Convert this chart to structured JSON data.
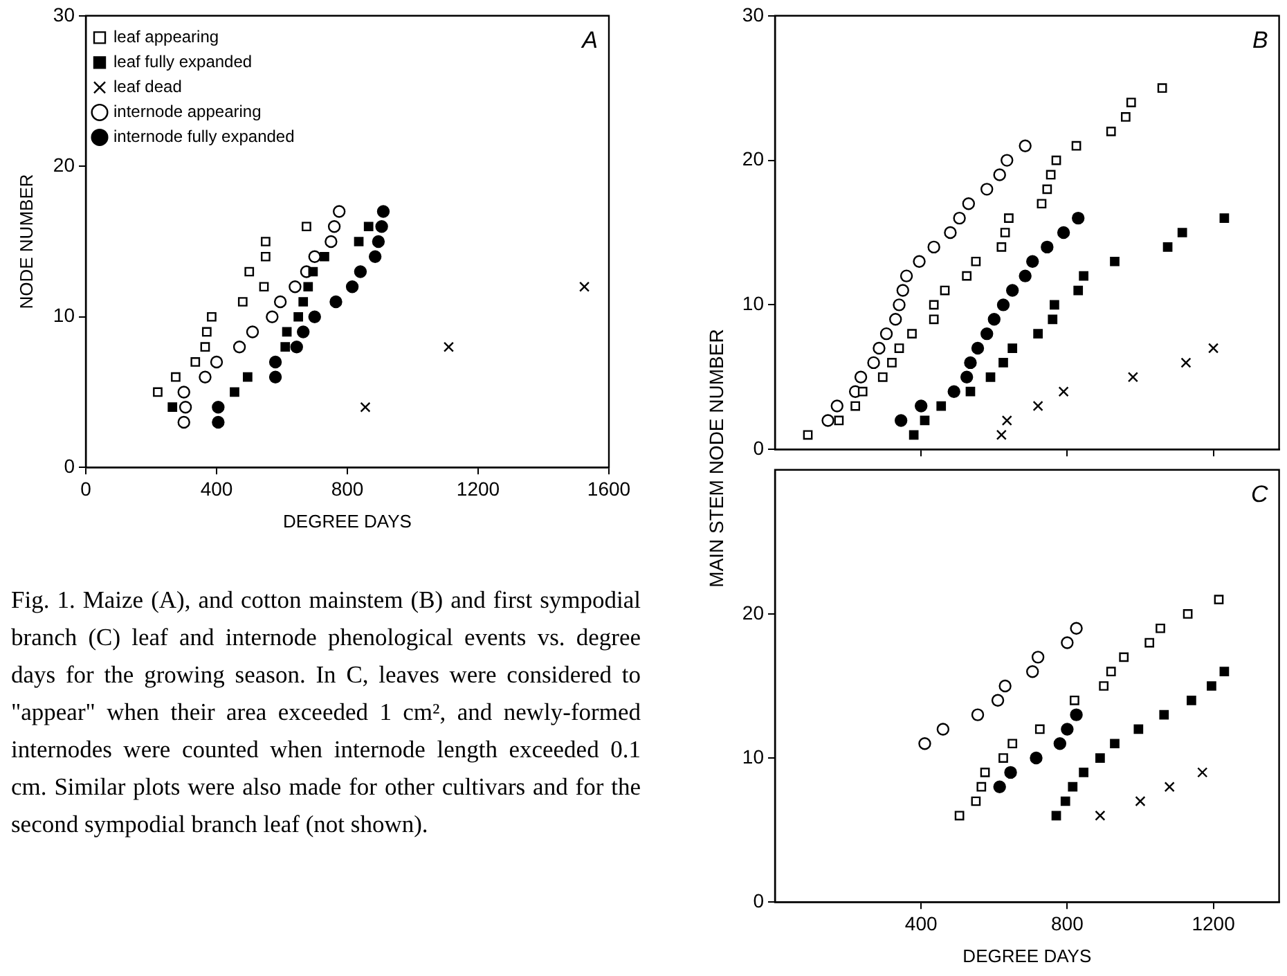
{
  "chart_data": [
    {
      "type": "scatter",
      "title": "A",
      "xlabel": "DEGREE DAYS",
      "ylabel": "NODE NUMBER",
      "xlim": [
        0,
        1600
      ],
      "xticks": [
        0,
        400,
        800,
        1200,
        1600
      ],
      "ylim": [
        0,
        30
      ],
      "yticks": [
        0,
        10,
        20,
        30
      ],
      "grid": false,
      "legend": "top left",
      "annotations": [
        "Fig. 1. Maize (A), and cotton mainstem (B) and first sympodial branch (C) leaf and internode phenological events vs. degree days for the growing season. In C, leaves were considered to \"appear\" when their area exceeded 1 cm², and newly-formed internodes were counted when internode length exceeded 0.1 cm. Similar plots were also made for other cultivars and for the second sympodial branch leaf (not shown)."
      ],
      "series": [
        {
          "name": "leaf appearing",
          "color": "#000000",
          "marker": "square",
          "x": [
            220,
            275,
            335,
            365,
            370,
            385,
            480,
            545,
            500,
            550,
            550,
            675
          ],
          "values": [
            5,
            6,
            7,
            8,
            9,
            10,
            11,
            12,
            13,
            14,
            15,
            16
          ]
        },
        {
          "name": "leaf fully expanded",
          "color": "#000000",
          "marker": "square",
          "x": [
            265,
            455,
            495,
            610,
            615,
            650,
            665,
            680,
            695,
            730,
            835,
            865
          ],
          "values": [
            4,
            5,
            6,
            8,
            9,
            10,
            11,
            12,
            13,
            14,
            15,
            16
          ]
        },
        {
          "name": "leaf dead",
          "color": "#000000",
          "marker": "cross",
          "x": [
            855,
            1110,
            1525
          ],
          "values": [
            4,
            8,
            12
          ]
        },
        {
          "name": "internode appearing",
          "color": "#000000",
          "marker": "circle",
          "x": [
            300,
            305,
            300,
            365,
            400,
            470,
            510,
            570,
            595,
            640,
            675,
            700,
            750,
            760,
            775
          ],
          "values": [
            5,
            4,
            3,
            6,
            7,
            8,
            9,
            10,
            11,
            12,
            13,
            14,
            15,
            16,
            17
          ]
        },
        {
          "name": "internode fully expanded",
          "color": "#000000",
          "marker": "circle",
          "x": [
            405,
            405,
            580,
            580,
            645,
            665,
            700,
            765,
            815,
            840,
            885,
            895,
            905,
            910
          ],
          "values": [
            4,
            3,
            6,
            7,
            8,
            9,
            10,
            11,
            12,
            13,
            14,
            15,
            16,
            17
          ]
        }
      ]
    },
    {
      "type": "scatter",
      "title": "B",
      "ylabel": "MAIN STEM NODE NUMBER",
      "xlim": [
        0,
        1380
      ],
      "xticks": [
        400,
        800,
        1200
      ],
      "ylim": [
        0,
        30
      ],
      "yticks": [
        0,
        10,
        20,
        30
      ],
      "grid": false,
      "tick_labels": "y",
      "series": [
        {
          "color": "#000000",
          "marker": "square",
          "x": [
            90,
            175,
            220,
            240,
            295,
            320,
            340,
            375,
            435,
            435,
            465,
            525,
            550,
            620,
            630,
            640,
            730,
            745,
            755,
            770,
            825,
            920,
            960,
            975,
            1060
          ],
          "values": [
            1,
            2,
            3,
            4,
            5,
            6,
            7,
            8,
            9,
            10,
            11,
            12,
            13,
            14,
            15,
            16,
            17,
            18,
            19,
            20,
            21,
            22,
            23,
            24,
            25
          ]
        },
        {
          "color": "#000000",
          "marker": "square",
          "x": [
            380,
            410,
            455,
            535,
            590,
            625,
            650,
            720,
            760,
            765,
            830,
            845,
            930,
            1075,
            1115,
            1230
          ],
          "values": [
            1,
            2,
            3,
            4,
            5,
            6,
            7,
            8,
            9,
            10,
            11,
            12,
            13,
            14,
            15,
            16
          ]
        },
        {
          "color": "#000000",
          "marker": "cross",
          "x": [
            620,
            635,
            720,
            790,
            980,
            1125,
            1200
          ],
          "values": [
            1,
            2,
            3,
            4,
            5,
            6,
            7
          ]
        },
        {
          "color": "#000000",
          "marker": "circle",
          "x": [
            145,
            170,
            220,
            235,
            270,
            285,
            305,
            330,
            340,
            350,
            360,
            395,
            435,
            480,
            505,
            530,
            580,
            615,
            635,
            685
          ],
          "values": [
            2,
            3,
            4,
            5,
            6,
            7,
            8,
            9,
            10,
            11,
            12,
            13,
            14,
            15,
            16,
            17,
            18,
            19,
            20,
            21
          ]
        },
        {
          "color": "#000000",
          "marker": "circle",
          "x": [
            345,
            400,
            490,
            525,
            535,
            555,
            580,
            600,
            625,
            650,
            685,
            705,
            745,
            790,
            830
          ],
          "values": [
            2,
            3,
            4,
            5,
            6,
            7,
            8,
            9,
            10,
            11,
            12,
            13,
            14,
            15,
            16
          ]
        }
      ]
    },
    {
      "type": "scatter",
      "title": "C",
      "xlabel": "DEGREE DAYS",
      "xlim": [
        0,
        1380
      ],
      "xticks": [
        400,
        800,
        1200
      ],
      "ylim": [
        0,
        30
      ],
      "yticks": [
        0,
        10,
        20
      ],
      "grid": false,
      "series": [
        {
          "color": "#000000",
          "marker": "square",
          "x": [
            505,
            550,
            565,
            575,
            625,
            650,
            725,
            820,
            900,
            920,
            955,
            1025,
            1055,
            1130,
            1215
          ],
          "values": [
            6,
            7,
            8,
            9,
            10,
            11,
            12,
            14,
            15,
            16,
            17,
            18,
            19,
            20,
            21
          ]
        },
        {
          "color": "#000000",
          "marker": "square",
          "x": [
            770,
            795,
            815,
            845,
            890,
            930,
            995,
            1065,
            1140,
            1195,
            1230
          ],
          "values": [
            6,
            7,
            8,
            9,
            10,
            11,
            12,
            13,
            14,
            15,
            16
          ]
        },
        {
          "color": "#000000",
          "marker": "cross",
          "x": [
            890,
            1000,
            1080,
            1170
          ],
          "values": [
            6,
            7,
            8,
            9
          ]
        },
        {
          "color": "#000000",
          "marker": "circle",
          "x": [
            410,
            460,
            555,
            610,
            630,
            705,
            720,
            800,
            825
          ],
          "values": [
            11,
            12,
            13,
            14,
            15,
            16,
            17,
            18,
            19
          ]
        },
        {
          "color": "#000000",
          "marker": "circle",
          "x": [
            615,
            645,
            715,
            780,
            800,
            825
          ],
          "values": [
            8,
            9,
            10,
            11,
            12,
            13
          ]
        }
      ]
    }
  ]
}
